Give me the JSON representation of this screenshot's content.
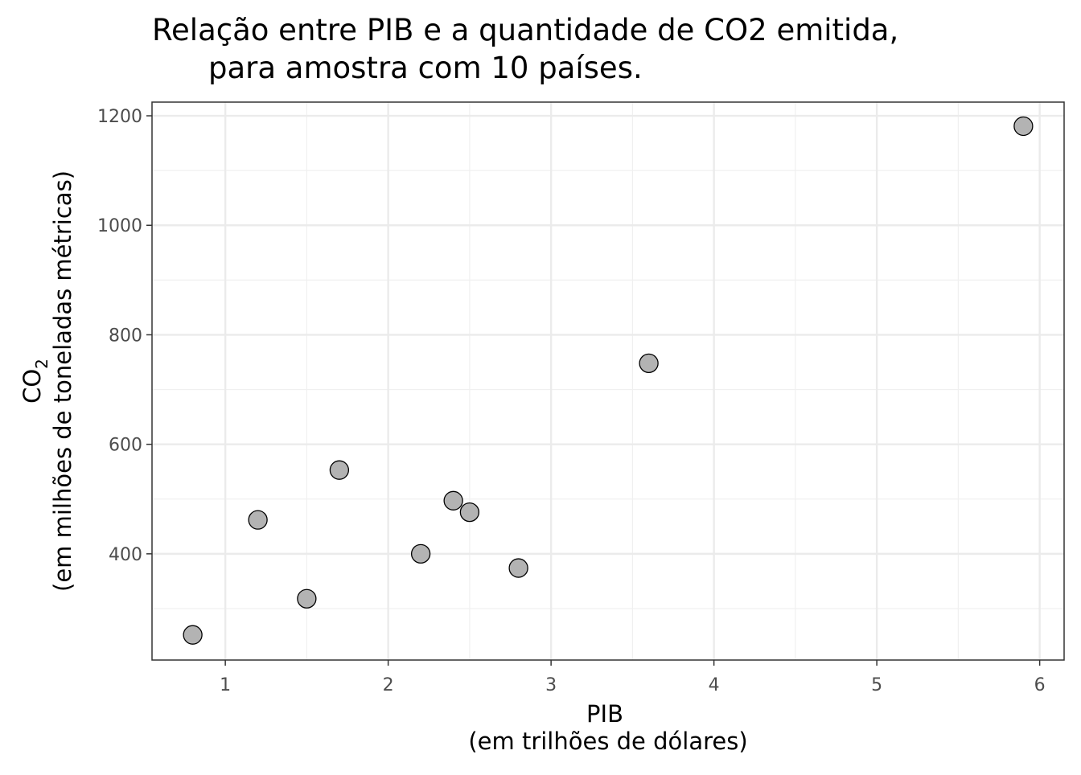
{
  "chart_data": {
    "type": "scatter",
    "title": [
      "Relação entre PIB e a quantidade de CO2 emitida,",
      "para amostra com 10 países."
    ],
    "xlabel": [
      "PIB",
      "(em trilhões de dólares)"
    ],
    "ylabel": {
      "main": "CO",
      "subscript": "2",
      "note": "(em milhões de toneladas métricas)"
    },
    "x": [
      0.8,
      1.2,
      1.5,
      1.7,
      2.2,
      2.4,
      2.5,
      2.8,
      3.6,
      5.9
    ],
    "values": [
      252,
      462,
      318,
      553,
      400,
      497,
      476,
      374,
      748,
      1181
    ],
    "color": "#b3b3b3",
    "xlim": [
      0.55,
      6.15
    ],
    "ylim": [
      206,
      1225
    ],
    "xticks": [
      1,
      2,
      3,
      4,
      5,
      6
    ],
    "yticks": [
      400,
      600,
      800,
      1000,
      1200
    ],
    "xminor": [
      1.5,
      2.5,
      3.5,
      4.5,
      5.5
    ],
    "yminor": [
      300,
      500,
      700,
      900,
      1100
    ],
    "grid": true
  }
}
